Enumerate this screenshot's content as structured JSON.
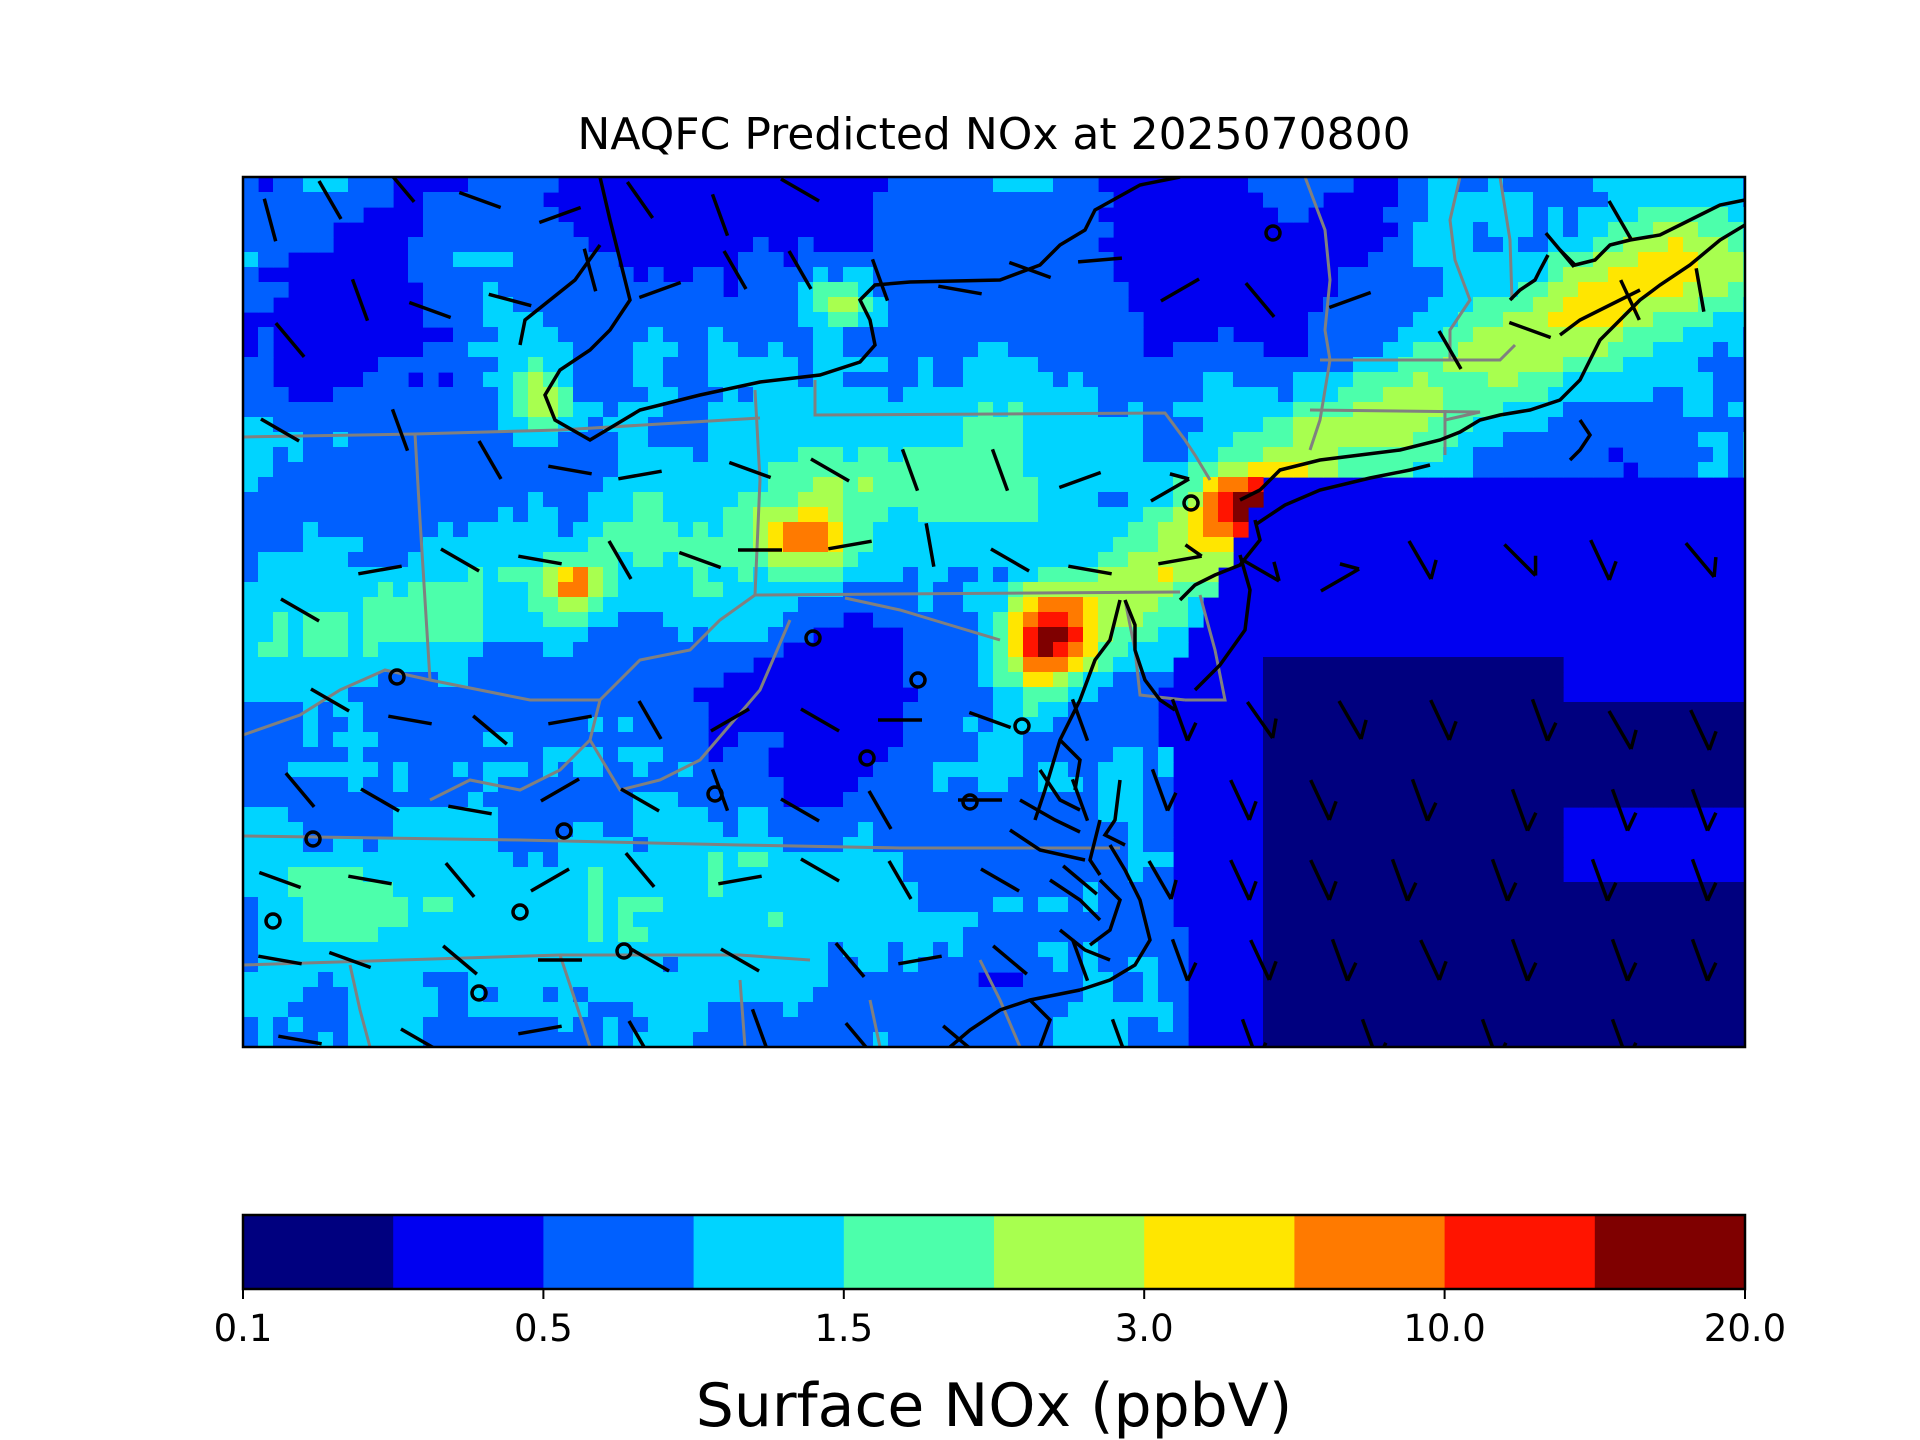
{
  "title": "NAQFC Predicted NOx at 2025070800",
  "colorbar": {
    "label": "Surface NOx (ppbV)",
    "tick_labels": [
      "0.1",
      "0.5",
      "1.5",
      "3.0",
      "10.0",
      "20.0"
    ],
    "colors": [
      "#00007f",
      "#0000f1",
      "#0060ff",
      "#00d4ff",
      "#4cffab",
      "#a8ff4f",
      "#ffe600",
      "#ff7a00",
      "#ff1400",
      "#7f0000"
    ]
  },
  "map": {
    "variable": "NOx",
    "units": "ppbV",
    "region": "U.S. Mid-Atlantic and Northeast",
    "overlays": [
      "coastlines",
      "state-borders",
      "wind-barbs",
      "station-markers"
    ]
  },
  "chart_data": {
    "type": "heatmap",
    "title": "NAQFC Predicted NOx at 2025070800",
    "colorbar_label": "Surface NOx (ppbV)",
    "colorbar_ticks": [
      "0.1",
      "0.5",
      "1.5",
      "3.0",
      "10.0",
      "20.0"
    ],
    "bins": 10,
    "grid": false
  }
}
